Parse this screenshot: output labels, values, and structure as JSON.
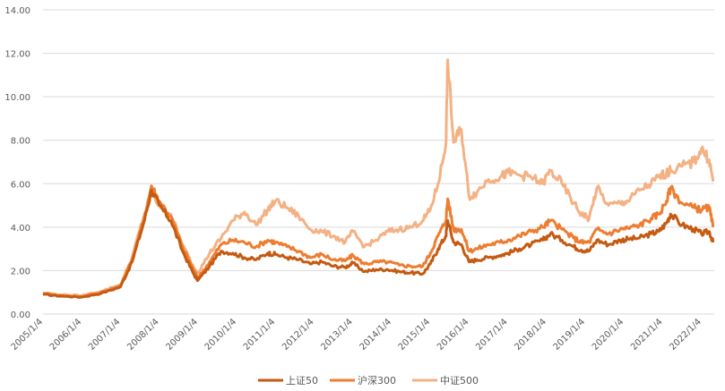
{
  "chart_data": {
    "type": "line",
    "title": "",
    "xlabel": "",
    "ylabel": "",
    "ylim": [
      0,
      14
    ],
    "grid": true,
    "legend_position": "bottom",
    "y_ticks": [
      "0.00",
      "2.00",
      "4.00",
      "6.00",
      "8.00",
      "10.00",
      "12.00",
      "14.00"
    ],
    "x_ticks": [
      "2005/1/4",
      "2006/1/4",
      "2007/1/4",
      "2008/1/4",
      "2009/1/4",
      "2010/1/4",
      "2011/1/4",
      "2012/1/4",
      "2013/1/4",
      "2014/1/4",
      "2015/1/4",
      "2016/1/4",
      "2017/1/4",
      "2018/1/4",
      "2019/1/4",
      "2020/1/4",
      "2021/1/4",
      "2022/1/4"
    ],
    "x": [
      2005.0,
      2005.5,
      2006.0,
      2006.5,
      2007.0,
      2007.3,
      2007.6,
      2007.8,
      2008.0,
      2008.3,
      2008.6,
      2008.9,
      2009.0,
      2009.3,
      2009.6,
      2009.9,
      2010.2,
      2010.5,
      2010.8,
      2011.0,
      2011.3,
      2011.6,
      2011.9,
      2012.2,
      2012.5,
      2012.8,
      2013.0,
      2013.3,
      2013.6,
      2013.9,
      2014.2,
      2014.5,
      2014.8,
      2015.0,
      2015.2,
      2015.4,
      2015.45,
      2015.6,
      2015.8,
      2016.0,
      2016.2,
      2016.5,
      2016.8,
      2017.0,
      2017.3,
      2017.6,
      2017.9,
      2018.1,
      2018.4,
      2018.7,
      2018.9,
      2019.1,
      2019.3,
      2019.6,
      2019.9,
      2020.1,
      2020.4,
      2020.7,
      2020.9,
      2021.1,
      2021.2,
      2021.5,
      2021.8,
      2022.0,
      2022.2,
      2022.3
    ],
    "series": [
      {
        "name": "上证50",
        "color": "#c55a11",
        "values": [
          0.9,
          0.82,
          0.78,
          0.95,
          1.25,
          2.4,
          4.2,
          5.7,
          5.0,
          4.3,
          2.9,
          1.8,
          1.55,
          2.2,
          2.9,
          2.8,
          2.6,
          2.5,
          2.8,
          2.75,
          2.6,
          2.5,
          2.3,
          2.4,
          2.2,
          2.15,
          2.35,
          1.95,
          2.05,
          2.05,
          1.95,
          1.9,
          1.85,
          2.3,
          3.0,
          3.6,
          4.3,
          3.3,
          3.2,
          2.4,
          2.5,
          2.6,
          2.7,
          2.8,
          3.0,
          3.2,
          3.4,
          3.7,
          3.4,
          3.1,
          2.95,
          2.9,
          3.4,
          3.2,
          3.4,
          3.45,
          3.5,
          3.7,
          3.8,
          4.2,
          4.6,
          4.1,
          3.9,
          3.7,
          3.8,
          3.3
        ]
      },
      {
        "name": "沪深300",
        "color": "#ed7d31",
        "values": [
          0.95,
          0.85,
          0.8,
          1.0,
          1.3,
          2.5,
          4.3,
          5.9,
          5.2,
          4.5,
          3.1,
          2.0,
          1.65,
          2.4,
          3.2,
          3.4,
          3.3,
          3.1,
          3.4,
          3.3,
          3.1,
          2.9,
          2.6,
          2.75,
          2.5,
          2.45,
          2.7,
          2.3,
          2.4,
          2.4,
          2.25,
          2.2,
          2.2,
          2.8,
          3.6,
          4.3,
          5.3,
          3.9,
          3.9,
          2.9,
          3.0,
          3.2,
          3.3,
          3.4,
          3.6,
          3.8,
          4.0,
          4.3,
          3.9,
          3.5,
          3.3,
          3.3,
          3.9,
          3.7,
          3.9,
          3.95,
          4.1,
          4.4,
          4.6,
          5.2,
          5.8,
          5.1,
          4.9,
          4.8,
          4.9,
          4.0
        ]
      },
      {
        "name": "中证500",
        "color": "#f4b183",
        "values": [
          0.98,
          0.88,
          0.85,
          1.05,
          1.35,
          2.6,
          4.5,
          5.6,
          5.0,
          4.6,
          3.2,
          2.1,
          1.9,
          2.8,
          3.5,
          4.3,
          4.7,
          4.1,
          4.8,
          5.2,
          4.9,
          4.5,
          3.9,
          3.8,
          3.6,
          3.3,
          3.8,
          3.1,
          3.4,
          3.8,
          3.9,
          4.0,
          4.3,
          4.8,
          6.0,
          7.8,
          11.7,
          7.9,
          8.5,
          5.4,
          5.6,
          6.2,
          6.3,
          6.5,
          6.4,
          6.3,
          6.0,
          6.6,
          6.0,
          5.1,
          4.6,
          4.4,
          5.8,
          5.0,
          5.1,
          5.2,
          5.7,
          6.0,
          6.3,
          6.5,
          6.6,
          6.8,
          7.0,
          7.6,
          7.1,
          6.1
        ]
      }
    ]
  }
}
